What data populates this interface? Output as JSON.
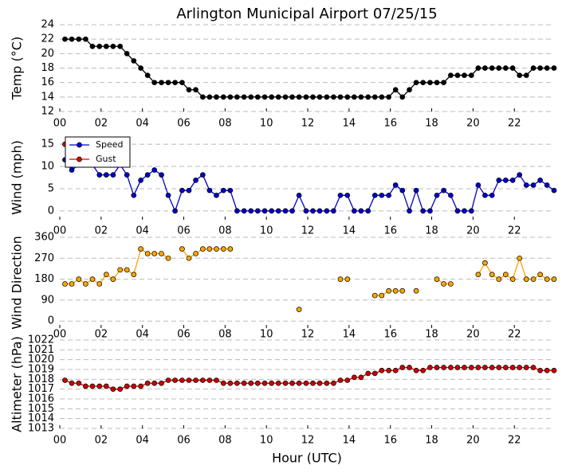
{
  "chart_data": [
    {
      "type": "line",
      "title": "Arlington Municipal Airport 07/25/15",
      "ylabel": "Temp (°C)",
      "color": "#000000",
      "x": [
        0.25,
        0.58,
        0.92,
        1.25,
        1.58,
        1.92,
        2.25,
        2.58,
        2.92,
        3.25,
        3.58,
        3.92,
        4.25,
        4.58,
        4.92,
        5.25,
        5.58,
        5.92,
        6.25,
        6.58,
        6.92,
        7.25,
        7.58,
        7.92,
        8.25,
        8.58,
        8.92,
        9.25,
        9.58,
        9.92,
        10.25,
        10.58,
        10.92,
        11.25,
        11.58,
        11.92,
        12.25,
        12.58,
        12.92,
        13.25,
        13.58,
        13.92,
        14.25,
        14.58,
        14.92,
        15.25,
        15.58,
        15.92,
        16.25,
        16.58,
        16.92,
        17.25,
        17.58,
        17.92,
        18.25,
        18.58,
        18.92,
        19.25,
        19.58,
        19.92,
        20.25,
        20.58,
        20.92,
        21.25,
        21.58,
        21.92,
        22.25,
        22.58,
        22.92,
        23.25,
        23.58,
        23.92
      ],
      "values": [
        22,
        22,
        22,
        22,
        21,
        21,
        21,
        21,
        21,
        20,
        19,
        18,
        17,
        16,
        16,
        16,
        16,
        16,
        15,
        15,
        14,
        14,
        14,
        14,
        14,
        14,
        14,
        14,
        14,
        14,
        14,
        14,
        14,
        14,
        14,
        14,
        14,
        14,
        14,
        14,
        14,
        14,
        14,
        14,
        14,
        14,
        14,
        14,
        15,
        14,
        15,
        16,
        16,
        16,
        16,
        16,
        17,
        17,
        17,
        17,
        18,
        18,
        18,
        18,
        18,
        18,
        17,
        17,
        18,
        18,
        18,
        18
      ],
      "xlim": [
        0,
        23.92
      ],
      "ylim": [
        12,
        24
      ],
      "yticks": [
        12,
        14,
        16,
        18,
        20,
        22,
        24
      ],
      "xticks": [
        {
          "value": 0,
          "label": "00"
        },
        {
          "value": 2,
          "label": "02"
        },
        {
          "value": 4,
          "label": "04"
        },
        {
          "value": 6,
          "label": "06"
        },
        {
          "value": 8,
          "label": "08"
        },
        {
          "value": 10,
          "label": "10"
        },
        {
          "value": 12,
          "label": "12"
        },
        {
          "value": 14,
          "label": "14"
        },
        {
          "value": 16,
          "label": "16"
        },
        {
          "value": 18,
          "label": "18"
        },
        {
          "value": 20,
          "label": "20"
        },
        {
          "value": 22,
          "label": "22"
        }
      ],
      "grid": true
    },
    {
      "type": "line",
      "ylabel": "Wind (mph)",
      "legend": "upper left",
      "x": [
        0.25,
        0.58,
        0.92,
        1.25,
        1.58,
        1.92,
        2.25,
        2.58,
        2.92,
        3.25,
        3.58,
        3.92,
        4.25,
        4.58,
        4.92,
        5.25,
        5.58,
        5.92,
        6.25,
        6.58,
        6.92,
        7.25,
        7.58,
        7.92,
        8.25,
        8.58,
        8.92,
        9.25,
        9.58,
        9.92,
        10.25,
        10.58,
        10.92,
        11.25,
        11.58,
        11.92,
        12.25,
        12.58,
        12.92,
        13.25,
        13.58,
        13.92,
        14.25,
        14.58,
        14.92,
        15.25,
        15.58,
        15.92,
        16.25,
        16.58,
        16.92,
        17.25,
        17.58,
        17.92,
        18.25,
        18.58,
        18.92,
        19.25,
        19.58,
        19.92,
        20.25,
        20.58,
        20.92,
        21.25,
        21.58,
        21.92,
        22.25,
        22.58,
        22.92,
        23.25,
        23.58,
        23.92
      ],
      "series": [
        {
          "name": "Speed",
          "color": "#0000cc",
          "values": [
            11.5,
            9.2,
            10.4,
            11.5,
            10.4,
            8.1,
            8.1,
            8.1,
            10.4,
            8.1,
            3.5,
            6.9,
            8.1,
            9.2,
            8.1,
            3.5,
            0,
            4.6,
            4.6,
            6.9,
            8.1,
            4.6,
            3.5,
            4.6,
            4.6,
            0,
            0,
            0,
            0,
            0,
            0,
            0,
            0,
            0,
            3.5,
            0,
            0,
            0,
            0,
            0,
            3.5,
            3.5,
            0,
            0,
            0,
            3.5,
            3.5,
            3.5,
            5.8,
            4.6,
            0,
            4.6,
            0,
            0,
            3.5,
            4.6,
            3.5,
            0,
            0,
            0,
            5.8,
            3.5,
            3.5,
            6.9,
            6.9,
            6.9,
            8.1,
            5.8,
            5.8,
            6.9,
            5.8,
            4.6
          ]
        },
        {
          "name": "Gust",
          "color": "#dd0000",
          "values": [
            15,
            null,
            null,
            null,
            null,
            null,
            null,
            null,
            null,
            null,
            null,
            null,
            null,
            null,
            null,
            null,
            null,
            null,
            null,
            null,
            null,
            null,
            null,
            null,
            null,
            null,
            null,
            null,
            null,
            null,
            null,
            null,
            null,
            null,
            null,
            null,
            null,
            null,
            null,
            null,
            null,
            null,
            null,
            null,
            null,
            null,
            null,
            null,
            null,
            null,
            null,
            null,
            null,
            null,
            null,
            null,
            null,
            null,
            null,
            null,
            null,
            null,
            null,
            null,
            null,
            null,
            null,
            null,
            null,
            null,
            null,
            null
          ]
        }
      ],
      "xlim": [
        0,
        23.92
      ],
      "ylim": [
        -2,
        17
      ],
      "yticks": [
        0,
        5,
        10,
        15
      ],
      "xticks": [
        {
          "value": 0,
          "label": "00"
        },
        {
          "value": 2,
          "label": "02"
        },
        {
          "value": 4,
          "label": "04"
        },
        {
          "value": 6,
          "label": "06"
        },
        {
          "value": 8,
          "label": "08"
        },
        {
          "value": 10,
          "label": "10"
        },
        {
          "value": 12,
          "label": "12"
        },
        {
          "value": 14,
          "label": "14"
        },
        {
          "value": 16,
          "label": "16"
        },
        {
          "value": 18,
          "label": "18"
        },
        {
          "value": 20,
          "label": "20"
        },
        {
          "value": 22,
          "label": "22"
        }
      ],
      "grid": true
    },
    {
      "type": "line",
      "ylabel": "Wind Direction",
      "color": "#ffa500",
      "x": [
        0.25,
        0.58,
        0.92,
        1.25,
        1.58,
        1.92,
        2.25,
        2.58,
        2.92,
        3.25,
        3.58,
        3.92,
        4.25,
        4.58,
        4.92,
        5.25,
        5.58,
        5.92,
        6.25,
        6.58,
        6.92,
        7.25,
        7.58,
        7.92,
        8.25,
        8.58,
        8.92,
        9.25,
        9.58,
        9.92,
        10.25,
        10.58,
        10.92,
        11.25,
        11.58,
        11.92,
        12.25,
        12.58,
        12.92,
        13.25,
        13.58,
        13.92,
        14.25,
        14.58,
        14.92,
        15.25,
        15.58,
        15.92,
        16.25,
        16.58,
        16.92,
        17.25,
        17.58,
        17.92,
        18.25,
        18.58,
        18.92,
        19.25,
        19.58,
        19.92,
        20.25,
        20.58,
        20.92,
        21.25,
        21.58,
        21.92,
        22.25,
        22.58,
        22.92,
        23.25,
        23.58,
        23.92
      ],
      "values": [
        160,
        160,
        180,
        160,
        180,
        160,
        200,
        180,
        220,
        220,
        200,
        310,
        290,
        290,
        290,
        270,
        null,
        310,
        270,
        290,
        310,
        310,
        310,
        310,
        310,
        null,
        null,
        null,
        null,
        null,
        null,
        null,
        null,
        null,
        50,
        null,
        null,
        null,
        null,
        null,
        180,
        180,
        null,
        null,
        null,
        110,
        110,
        130,
        130,
        130,
        null,
        130,
        null,
        null,
        180,
        160,
        160,
        null,
        null,
        null,
        200,
        250,
        200,
        180,
        200,
        180,
        270,
        180,
        180,
        200,
        180,
        180
      ],
      "xlim": [
        0,
        23.92
      ],
      "ylim": [
        -30,
        360
      ],
      "yticks": [
        0,
        90,
        180,
        270,
        360
      ],
      "xticks": [
        {
          "value": 0,
          "label": "00"
        },
        {
          "value": 2,
          "label": "02"
        },
        {
          "value": 4,
          "label": "04"
        },
        {
          "value": 6,
          "label": "06"
        },
        {
          "value": 8,
          "label": "08"
        },
        {
          "value": 10,
          "label": "10"
        },
        {
          "value": 12,
          "label": "12"
        },
        {
          "value": 14,
          "label": "14"
        },
        {
          "value": 16,
          "label": "16"
        },
        {
          "value": 18,
          "label": "18"
        },
        {
          "value": 20,
          "label": "20"
        },
        {
          "value": 22,
          "label": "22"
        }
      ],
      "grid": true
    },
    {
      "type": "line",
      "ylabel": "Altimeter (hPa)",
      "xlabel": "Hour (UTC)",
      "color": "#cc0000",
      "x": [
        0.25,
        0.58,
        0.92,
        1.25,
        1.58,
        1.92,
        2.25,
        2.58,
        2.92,
        3.25,
        3.58,
        3.92,
        4.25,
        4.58,
        4.92,
        5.25,
        5.58,
        5.92,
        6.25,
        6.58,
        6.92,
        7.25,
        7.58,
        7.92,
        8.25,
        8.58,
        8.92,
        9.25,
        9.58,
        9.92,
        10.25,
        10.58,
        10.92,
        11.25,
        11.58,
        11.92,
        12.25,
        12.58,
        12.92,
        13.25,
        13.58,
        13.92,
        14.25,
        14.58,
        14.92,
        15.25,
        15.58,
        15.92,
        16.25,
        16.58,
        16.92,
        17.25,
        17.58,
        17.92,
        18.25,
        18.58,
        18.92,
        19.25,
        19.58,
        19.92,
        20.25,
        20.58,
        20.92,
        21.25,
        21.58,
        21.92,
        22.25,
        22.58,
        22.92,
        23.25,
        23.58,
        23.92
      ],
      "values": [
        1017.9,
        1017.6,
        1017.6,
        1017.3,
        1017.3,
        1017.3,
        1017.3,
        1017.0,
        1017.0,
        1017.3,
        1017.3,
        1017.3,
        1017.6,
        1017.6,
        1017.6,
        1017.9,
        1017.9,
        1017.9,
        1017.9,
        1017.9,
        1017.9,
        1017.9,
        1017.9,
        1017.6,
        1017.6,
        1017.6,
        1017.6,
        1017.6,
        1017.6,
        1017.6,
        1017.6,
        1017.6,
        1017.6,
        1017.6,
        1017.6,
        1017.6,
        1017.6,
        1017.6,
        1017.6,
        1017.6,
        1017.9,
        1017.9,
        1018.2,
        1018.2,
        1018.6,
        1018.6,
        1018.9,
        1018.9,
        1018.9,
        1019.2,
        1019.2,
        1018.9,
        1018.9,
        1019.2,
        1019.2,
        1019.2,
        1019.2,
        1019.2,
        1019.2,
        1019.2,
        1019.2,
        1019.2,
        1019.2,
        1019.2,
        1019.2,
        1019.2,
        1019.2,
        1019.2,
        1019.2,
        1018.9,
        1018.9,
        1018.9
      ],
      "xlim": [
        0,
        23.92
      ],
      "ylim": [
        1013,
        1022
      ],
      "yticks": [
        1013,
        1014,
        1015,
        1016,
        1017,
        1018,
        1019,
        1020,
        1021,
        1022
      ],
      "xticks": [
        {
          "value": 0,
          "label": "00"
        },
        {
          "value": 2,
          "label": "02"
        },
        {
          "value": 4,
          "label": "04"
        },
        {
          "value": 6,
          "label": "06"
        },
        {
          "value": 8,
          "label": "08"
        },
        {
          "value": 10,
          "label": "10"
        },
        {
          "value": 12,
          "label": "12"
        },
        {
          "value": 14,
          "label": "14"
        },
        {
          "value": 16,
          "label": "16"
        },
        {
          "value": 18,
          "label": "18"
        },
        {
          "value": 20,
          "label": "20"
        },
        {
          "value": 22,
          "label": "22"
        }
      ],
      "grid": true
    }
  ]
}
